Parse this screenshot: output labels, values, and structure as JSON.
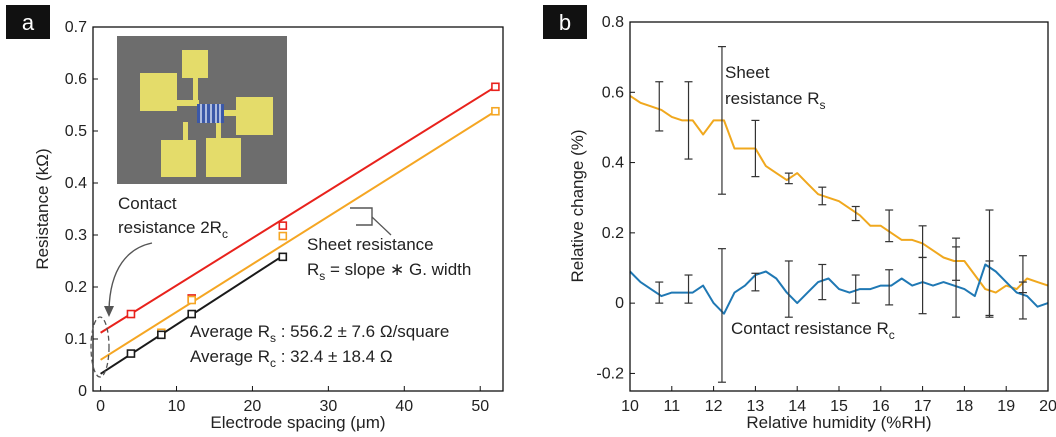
{
  "chart_data": [
    {
      "type": "scatter",
      "panel_label": "a",
      "xlabel": "Electrode spacing (μm)",
      "ylabel": "Resistance (kΩ)",
      "xlim": [
        -1,
        53
      ],
      "ylim": [
        0,
        0.7
      ],
      "xticks": [
        0,
        10,
        20,
        30,
        40,
        50
      ],
      "yticks": [
        0,
        0.1,
        0.2,
        0.3,
        0.4,
        0.5,
        0.6,
        0.7
      ],
      "series": [
        {
          "color": "#e8221c",
          "x": [
            4,
            12,
            24,
            52
          ],
          "values": [
            0.148,
            0.178,
            0.318,
            0.585
          ],
          "fit": [
            [
              0,
              0.112
            ],
            [
              52,
              0.585
            ]
          ]
        },
        {
          "color": "#f5a623",
          "x": [
            8,
            12,
            24,
            52
          ],
          "values": [
            0.112,
            0.175,
            0.298,
            0.538
          ],
          "fit": [
            [
              0,
              0.06
            ],
            [
              52,
              0.538
            ]
          ]
        },
        {
          "color": "#1a1a1a",
          "x": [
            4,
            8,
            12,
            24
          ],
          "values": [
            0.072,
            0.108,
            0.148,
            0.258
          ],
          "fit": [
            [
              0,
              0.033
            ],
            [
              24,
              0.26
            ]
          ]
        }
      ],
      "annotations": {
        "contact": {
          "line1": "Contact",
          "line2_main": "resistance 2R",
          "line2_sub": "c"
        },
        "sheet": {
          "line1": "Sheet resistance",
          "l2_a": "R",
          "l2_sub": "s",
          "l2_b": " = slope ∗ G. width"
        },
        "avg_rs": {
          "a": "Average R",
          "sub": "s",
          "b": " : 556.2 ± 7.6 Ω/square"
        },
        "avg_rc": {
          "a": "Average R",
          "sub": "c",
          "b": " : 32.4 ± 18.4 Ω"
        }
      },
      "inset": {
        "pad_color": "#e4dc6a",
        "substrate_color": "#6d6d6d",
        "channel_color": "#3b58a8"
      }
    },
    {
      "type": "line",
      "panel_label": "b",
      "xlabel": "Relative humidity (%RH)",
      "ylabel": "Relative change (%)",
      "xlim": [
        10,
        20
      ],
      "ylim": [
        -0.25,
        0.8
      ],
      "xticks": [
        10,
        11,
        12,
        13,
        14,
        15,
        16,
        17,
        18,
        19,
        20
      ],
      "yticks": [
        -0.2,
        0,
        0.2,
        0.4,
        0.6,
        0.8
      ],
      "series": [
        {
          "color": "#f0a81e",
          "x": [
            10,
            10.25,
            10.5,
            10.75,
            11,
            11.25,
            11.5,
            11.75,
            12,
            12.25,
            12.5,
            12.75,
            13,
            13.25,
            13.5,
            13.75,
            14,
            14.25,
            14.5,
            14.75,
            15,
            15.25,
            15.5,
            15.75,
            16,
            16.25,
            16.5,
            16.75,
            17,
            17.25,
            17.5,
            17.75,
            18,
            18.25,
            18.5,
            18.75,
            19,
            19.25,
            19.5,
            19.75,
            20
          ],
          "values": [
            0.59,
            0.57,
            0.56,
            0.55,
            0.53,
            0.52,
            0.52,
            0.48,
            0.52,
            0.52,
            0.44,
            0.44,
            0.44,
            0.39,
            0.37,
            0.35,
            0.37,
            0.34,
            0.31,
            0.3,
            0.29,
            0.27,
            0.25,
            0.22,
            0.22,
            0.2,
            0.18,
            0.18,
            0.17,
            0.15,
            0.13,
            0.12,
            0.12,
            0.08,
            0.04,
            0.03,
            0.05,
            0.04,
            0.07,
            0.06,
            0.05
          ],
          "errorbars": [
            {
              "x": 10.7,
              "y": 0.56,
              "e": 0.07
            },
            {
              "x": 11.4,
              "y": 0.52,
              "e": 0.11
            },
            {
              "x": 12.2,
              "y": 0.52,
              "e": 0.21
            },
            {
              "x": 13,
              "y": 0.44,
              "e": 0.08
            },
            {
              "x": 13.8,
              "y": 0.355,
              "e": 0.015
            },
            {
              "x": 14.6,
              "y": 0.305,
              "e": 0.025
            },
            {
              "x": 15.4,
              "y": 0.255,
              "e": 0.02
            },
            {
              "x": 16.2,
              "y": 0.22,
              "e": 0.045
            },
            {
              "x": 17,
              "y": 0.175,
              "e": 0.045
            },
            {
              "x": 17.8,
              "y": 0.125,
              "e": 0.06
            },
            {
              "x": 18.6,
              "y": 0.04,
              "e": 0.08
            },
            {
              "x": 19.4,
              "y": 0.045,
              "e": 0.015
            }
          ]
        },
        {
          "color": "#1f78b4",
          "x": [
            10,
            10.25,
            10.5,
            10.75,
            11,
            11.25,
            11.5,
            11.75,
            12,
            12.25,
            12.5,
            12.75,
            13,
            13.25,
            13.5,
            13.75,
            14,
            14.25,
            14.5,
            14.75,
            15,
            15.25,
            15.5,
            15.75,
            16,
            16.25,
            16.5,
            16.75,
            17,
            17.25,
            17.5,
            17.75,
            18,
            18.25,
            18.5,
            18.75,
            19,
            19.25,
            19.5,
            19.75,
            20
          ],
          "values": [
            0.09,
            0.06,
            0.04,
            0.02,
            0.03,
            0.03,
            0.03,
            0.05,
            0.0,
            -0.03,
            0.03,
            0.05,
            0.08,
            0.09,
            0.07,
            0.03,
            0.0,
            0.03,
            0.06,
            0.07,
            0.04,
            0.03,
            0.04,
            0.04,
            0.05,
            0.05,
            0.07,
            0.05,
            0.06,
            0.05,
            0.06,
            0.05,
            0.04,
            0.02,
            0.11,
            0.09,
            0.06,
            0.03,
            0.02,
            -0.01,
            0.0
          ],
          "errorbars": [
            {
              "x": 10.7,
              "y": 0.03,
              "e": 0.03
            },
            {
              "x": 11.4,
              "y": 0.04,
              "e": 0.04
            },
            {
              "x": 12.2,
              "y": -0.035,
              "e": 0.19
            },
            {
              "x": 13,
              "y": 0.06,
              "e": 0.025
            },
            {
              "x": 13.8,
              "y": 0.04,
              "e": 0.08
            },
            {
              "x": 14.6,
              "y": 0.06,
              "e": 0.05
            },
            {
              "x": 15.4,
              "y": 0.04,
              "e": 0.04
            },
            {
              "x": 16.2,
              "y": 0.045,
              "e": 0.05
            },
            {
              "x": 17,
              "y": 0.05,
              "e": 0.08
            },
            {
              "x": 17.8,
              "y": 0.06,
              "e": 0.1
            },
            {
              "x": 18.6,
              "y": 0.115,
              "e": 0.15
            },
            {
              "x": 19.4,
              "y": 0.045,
              "e": 0.09
            }
          ]
        }
      ],
      "annotations": {
        "sheet": {
          "line1": "Sheet",
          "line2_main": "resistance R",
          "line2_sub": "s"
        },
        "contact": {
          "main": "Contact resistance R",
          "sub": "c"
        }
      }
    }
  ]
}
